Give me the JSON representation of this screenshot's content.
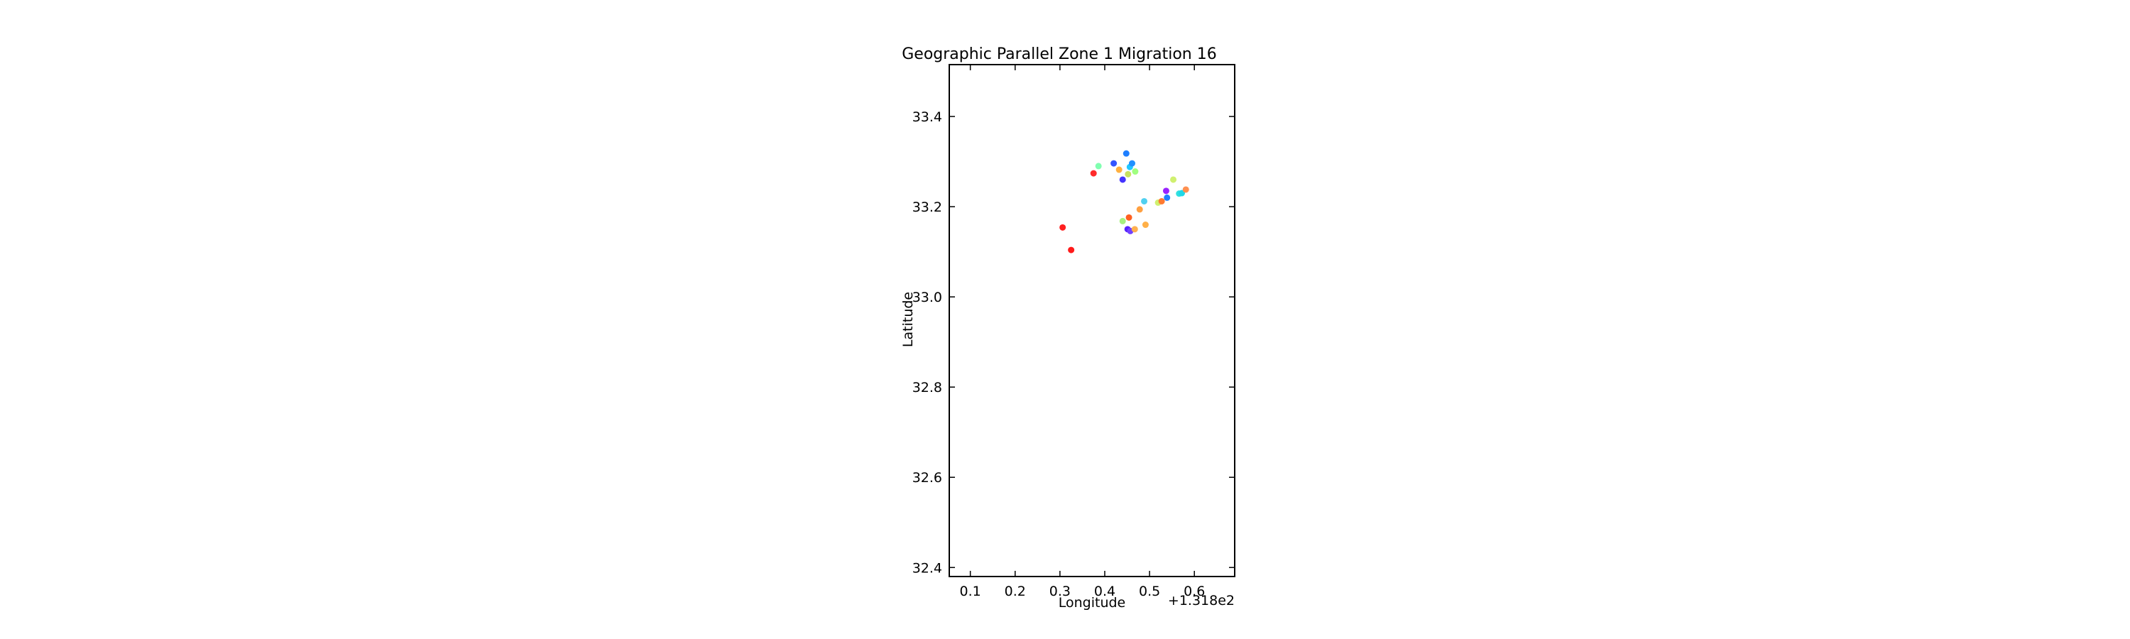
{
  "chart_data": {
    "type": "scatter",
    "title": "Geographic Parallel Zone 1 Migration 16",
    "xlabel": "Longitude",
    "ylabel": "Latitude",
    "x_offset_label": "+1.318e2",
    "xlim": [
      131.853,
      132.49
    ],
    "ylim": [
      32.38,
      33.515
    ],
    "x_ticks": [
      131.9,
      132.0,
      132.1,
      132.2,
      132.3,
      132.4
    ],
    "x_tick_labels": [
      "0.1",
      "0.2",
      "0.3",
      "0.4",
      "0.5",
      "0.6"
    ],
    "y_ticks": [
      32.4,
      32.6,
      32.8,
      33.0,
      33.2,
      33.4
    ],
    "y_tick_labels": [
      "32.4",
      "32.6",
      "32.8",
      "33.0",
      "33.2",
      "33.4"
    ],
    "grid": false,
    "legend": "none",
    "points": [
      {
        "x": 132.106,
        "y": 33.154,
        "color": "#ff2020"
      },
      {
        "x": 132.125,
        "y": 33.104,
        "color": "#ff1a1a"
      },
      {
        "x": 132.175,
        "y": 33.274,
        "color": "#ff2a2a"
      },
      {
        "x": 132.186,
        "y": 33.29,
        "color": "#80ffb0"
      },
      {
        "x": 132.22,
        "y": 33.296,
        "color": "#3355ff"
      },
      {
        "x": 132.232,
        "y": 33.282,
        "color": "#ffb040"
      },
      {
        "x": 132.24,
        "y": 33.26,
        "color": "#4433ff"
      },
      {
        "x": 132.248,
        "y": 33.318,
        "color": "#1e7fff"
      },
      {
        "x": 132.252,
        "y": 33.272,
        "color": "#c8e060"
      },
      {
        "x": 132.256,
        "y": 33.288,
        "color": "#20c8ff"
      },
      {
        "x": 132.261,
        "y": 33.296,
        "color": "#2090ff"
      },
      {
        "x": 132.268,
        "y": 33.278,
        "color": "#a0ff80"
      },
      {
        "x": 132.24,
        "y": 33.168,
        "color": "#a8f080"
      },
      {
        "x": 132.254,
        "y": 33.176,
        "color": "#ff6020"
      },
      {
        "x": 132.251,
        "y": 33.15,
        "color": "#5522ff"
      },
      {
        "x": 132.257,
        "y": 33.146,
        "color": "#7040ff"
      },
      {
        "x": 132.267,
        "y": 33.15,
        "color": "#ffb050"
      },
      {
        "x": 132.278,
        "y": 33.194,
        "color": "#ffa040"
      },
      {
        "x": 132.288,
        "y": 33.212,
        "color": "#50d0f0"
      },
      {
        "x": 132.291,
        "y": 33.16,
        "color": "#ffb048"
      },
      {
        "x": 132.319,
        "y": 33.209,
        "color": "#d0f070"
      },
      {
        "x": 132.327,
        "y": 33.212,
        "color": "#ff7a30"
      },
      {
        "x": 132.337,
        "y": 33.235,
        "color": "#9922ff"
      },
      {
        "x": 132.339,
        "y": 33.22,
        "color": "#2080ff"
      },
      {
        "x": 132.353,
        "y": 33.26,
        "color": "#d0f070"
      },
      {
        "x": 132.366,
        "y": 33.229,
        "color": "#30e0e0"
      },
      {
        "x": 132.372,
        "y": 33.23,
        "color": "#20d8e8"
      },
      {
        "x": 132.381,
        "y": 33.238,
        "color": "#ff9050"
      }
    ]
  }
}
